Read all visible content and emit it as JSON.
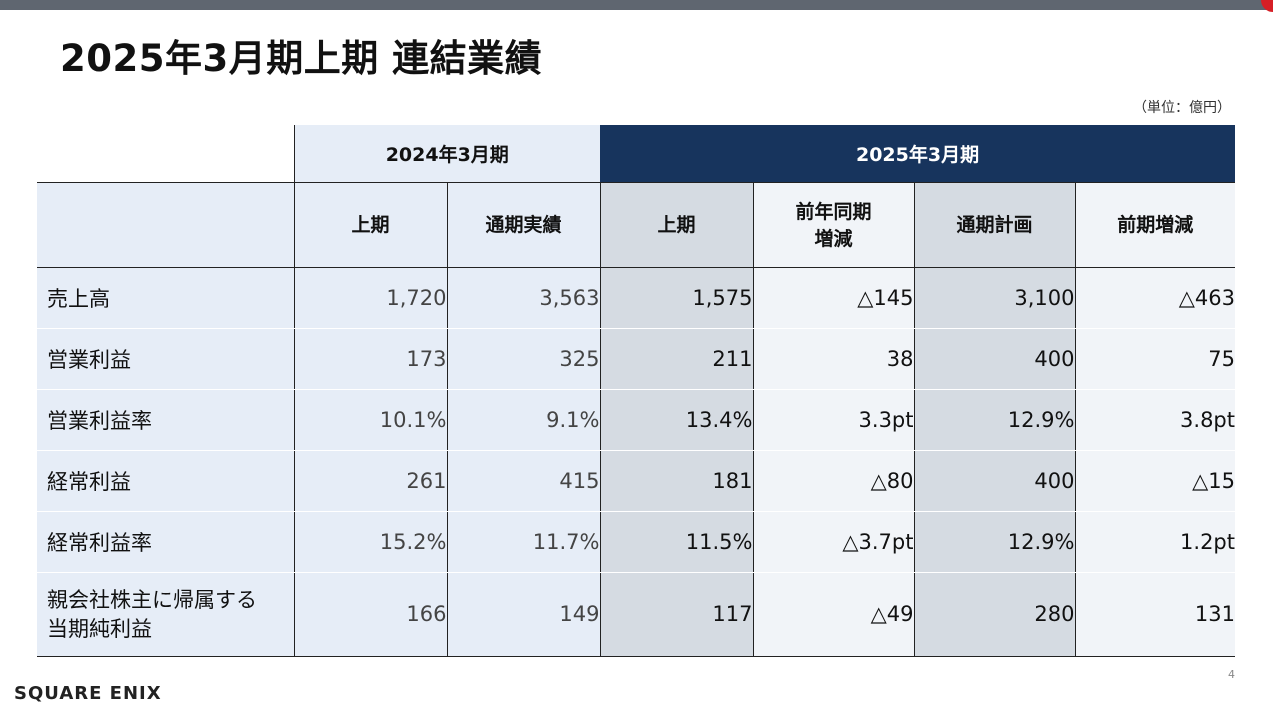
{
  "title": "2025年3月期上期 連結業績",
  "unit": "（単位：億円）",
  "header": {
    "fy2024": "2024年3月期",
    "fy2025": "2025年3月期"
  },
  "columns": [
    "上期",
    "通期実績",
    "上期",
    "前年同期\n増減",
    "通期計画",
    "前期増減"
  ],
  "rows": [
    {
      "label": "売上高",
      "values": [
        "1,720",
        "3,563",
        "1,575",
        "△145",
        "3,100",
        "△463"
      ]
    },
    {
      "label": "営業利益",
      "values": [
        "173",
        "325",
        "211",
        "38",
        "400",
        "75"
      ]
    },
    {
      "label": "営業利益率",
      "values": [
        "10.1%",
        "9.1%",
        "13.4%",
        "3.3pt",
        "12.9%",
        "3.8pt"
      ]
    },
    {
      "label": "経常利益",
      "values": [
        "261",
        "415",
        "181",
        "△80",
        "400",
        "△15"
      ]
    },
    {
      "label": "経常利益率",
      "values": [
        "15.2%",
        "11.7%",
        "11.5%",
        "△3.7pt",
        "12.9%",
        "1.2pt"
      ]
    },
    {
      "label": "親会社株主に帰属する\n当期純利益",
      "values": [
        "166",
        "149",
        "117",
        "△49",
        "280",
        "131"
      ]
    }
  ],
  "footer": {
    "logo": "SQUARE ENIX",
    "page": "4"
  },
  "colors": {
    "header_dark": "#17345d",
    "header_light": "#e6edf7",
    "highlight_gray": "#d5dbe2",
    "accent_red": "#d61f26"
  }
}
